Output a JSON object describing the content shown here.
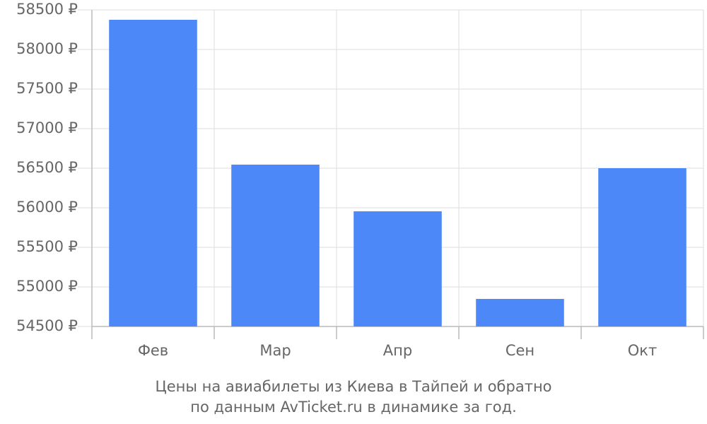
{
  "chart_data": {
    "type": "bar",
    "title": [
      "Цены на авиабилеты из Киева в Тайпей и обратно",
      "по данным AvTicket.ru в динамике за год."
    ],
    "categories": [
      "Фев",
      "Мар",
      "Апр",
      "Сен",
      "Окт"
    ],
    "values": [
      58375,
      56545,
      55955,
      54848,
      56500
    ],
    "color": "#4d88f9",
    "ylim": [
      54500,
      58500
    ],
    "yticks": [
      {
        "value": 54500,
        "label": "54500 ₽"
      },
      {
        "value": 55000,
        "label": "55000 ₽"
      },
      {
        "value": 55500,
        "label": "55500 ₽"
      },
      {
        "value": 56000,
        "label": "56000 ₽"
      },
      {
        "value": 56500,
        "label": "56500 ₽"
      },
      {
        "value": 57000,
        "label": "57000 ₽"
      },
      {
        "value": 57500,
        "label": "57500 ₽"
      },
      {
        "value": 58000,
        "label": "58000 ₽"
      },
      {
        "value": 58500,
        "label": "58500 ₽"
      }
    ],
    "grid": true
  }
}
